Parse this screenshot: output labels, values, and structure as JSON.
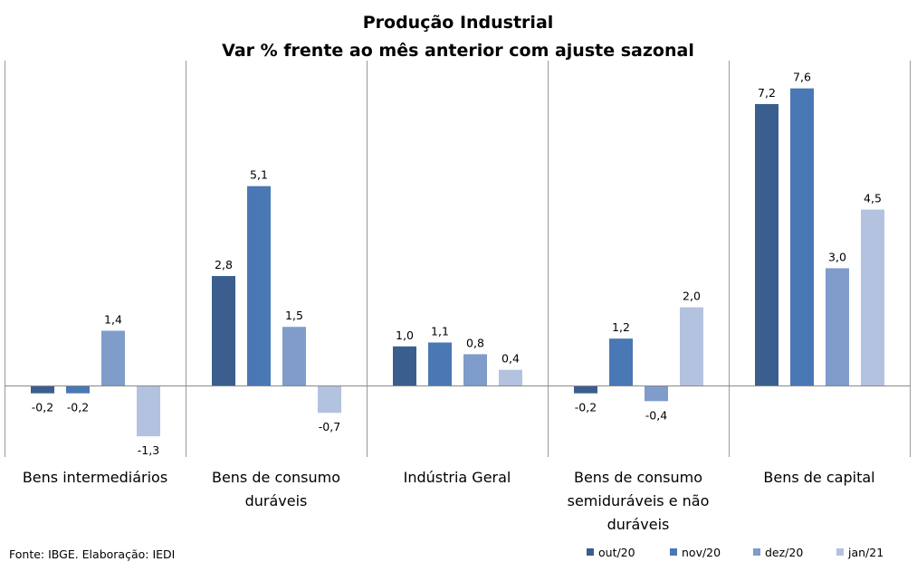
{
  "chart_data": {
    "type": "bar",
    "title": "Produção Industrial",
    "subtitle": "Var % frente ao mês anterior com ajuste sazonal",
    "categories": [
      "Bens intermediários",
      "Bens de consumo duráveis",
      "Indústria Geral",
      "Bens de consumo semiduráveis e não duráveis",
      "Bens de capital"
    ],
    "category_lines": [
      [
        "Bens intermediários"
      ],
      [
        "Bens de consumo",
        "duráveis"
      ],
      [
        "Indústria Geral"
      ],
      [
        "Bens de consumo",
        "semiduráveis e não",
        "duráveis"
      ],
      [
        "Bens de capital"
      ]
    ],
    "series": [
      {
        "name": "out/20",
        "color": "#3a5f8f",
        "values": [
          -0.2,
          2.8,
          1.0,
          -0.2,
          7.2
        ],
        "labels": [
          "-0,2",
          "2,8",
          "1,0",
          "-0,2",
          "7,2"
        ]
      },
      {
        "name": "nov/20",
        "color": "#4a78b4",
        "values": [
          -0.2,
          5.1,
          1.1,
          1.2,
          7.6
        ],
        "labels": [
          "-0,2",
          "5,1",
          "1,1",
          "1,2",
          "7,6"
        ]
      },
      {
        "name": "dez/20",
        "color": "#7f9ccb",
        "values": [
          1.4,
          1.5,
          0.8,
          -0.4,
          3.0
        ],
        "labels": [
          "1,4",
          "1,5",
          "0,8",
          "-0,4",
          "3,0"
        ]
      },
      {
        "name": "jan/21",
        "color": "#b3c2de",
        "values": [
          -1.3,
          -0.7,
          0.4,
          2.0,
          4.5
        ],
        "labels": [
          "-1,3",
          "-0,7",
          "0,4",
          "2,0",
          "4,5"
        ]
      }
    ],
    "ylim": [
      -1.5,
      8.0
    ],
    "grid": false,
    "legend_position": "bottom-right",
    "source": "Fonte: IBGE. Elaboração: IEDI"
  }
}
